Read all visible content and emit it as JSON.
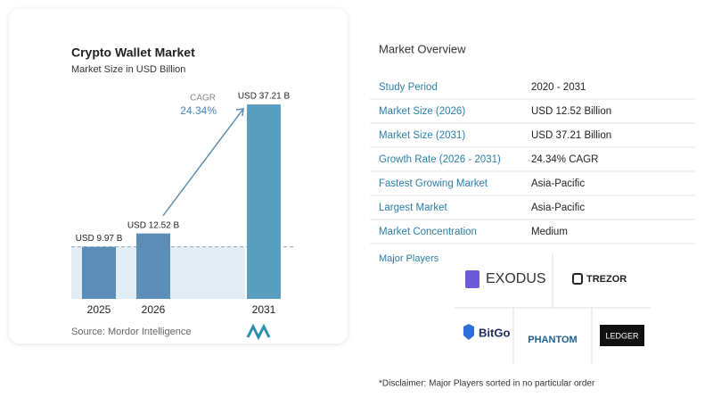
{
  "chart_data": {
    "type": "bar",
    "title": "Crypto Wallet Market",
    "subtitle": "Market Size in USD Billion",
    "categories": [
      "2025",
      "2026",
      "2031"
    ],
    "values": [
      9.97,
      12.52,
      37.21
    ],
    "value_labels": [
      "USD 9.97 B",
      "USD 12.52 B",
      "USD 37.21 B"
    ],
    "colors": [
      "#5b8db6",
      "#5b8db6",
      "#5a9fc0"
    ],
    "annotation": {
      "label": "CAGR",
      "value": "24.34%"
    },
    "source": "Source: Mordor Intelligence"
  },
  "overview": {
    "title": "Market Overview",
    "rows": [
      [
        "Study Period",
        "2020 - 2031"
      ],
      [
        "Market Size (2026)",
        "USD 12.52 Billion"
      ],
      [
        "Market Size (2031)",
        "USD 37.21 Billion"
      ],
      [
        "Growth Rate (2026 - 2031)",
        "24.34% CAGR"
      ],
      [
        "Fastest Growing Market",
        "Asia-Pacific"
      ],
      [
        "Largest Market",
        "Asia-Pacific"
      ],
      [
        "Market Concentration",
        "Medium"
      ]
    ]
  },
  "players": {
    "title": "Major Players",
    "names": [
      "EXODUS",
      "TREZOR",
      "BitGo",
      "PHANTOM",
      "LEDGER"
    ],
    "disclaimer": "*Disclaimer: Major Players sorted in no particular order"
  }
}
